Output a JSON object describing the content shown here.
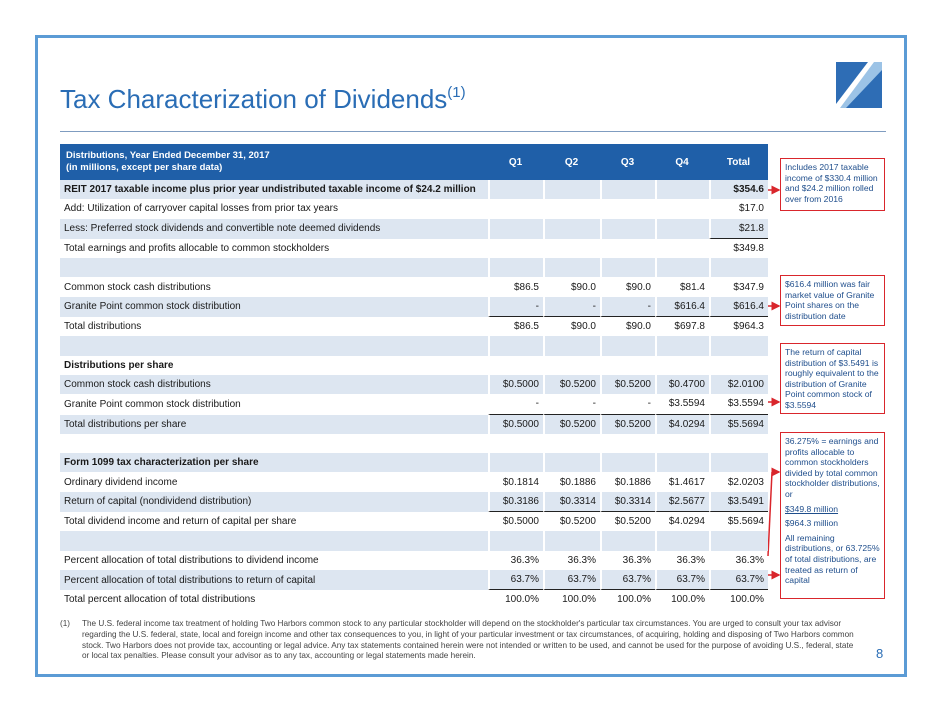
{
  "header": {
    "title": "Tax Characterization of Dividends",
    "title_note": "(1)"
  },
  "table": {
    "header_title": "Distributions, Year Ended December 31, 2017",
    "header_subtitle": "(in millions, except per share data)",
    "columns": [
      "Q1",
      "Q2",
      "Q3",
      "Q4",
      "Total"
    ],
    "rows": [
      [
        "REIT 2017 taxable income plus prior year undistributed taxable income of $24.2 million",
        null,
        null,
        null,
        null,
        "$354.6"
      ],
      [
        "Add: Utilization of carryover capital losses from prior tax years",
        null,
        null,
        null,
        null,
        "$17.0"
      ],
      [
        "Less: Preferred stock dividends and convertible note deemed dividends",
        null,
        null,
        null,
        null,
        "$21.8"
      ],
      [
        "Total earnings and profits allocable to common stockholders",
        null,
        null,
        null,
        null,
        "$349.8"
      ],
      null,
      [
        "Common stock cash distributions",
        "$86.5",
        "$90.0",
        "$90.0",
        "$81.4",
        "$347.9"
      ],
      [
        "Granite Point common stock distribution",
        "-",
        "-",
        "-",
        "$616.4",
        "$616.4"
      ],
      [
        "Total distributions",
        "$86.5",
        "$90.0",
        "$90.0",
        "$697.8",
        "$964.3"
      ],
      null,
      [
        "Distributions per share",
        null,
        null,
        null,
        null,
        null
      ],
      [
        "Common stock cash distributions",
        "$0.5000",
        "$0.5200",
        "$0.5200",
        "$0.4700",
        "$2.0100"
      ],
      [
        "Granite Point common stock distribution",
        "-",
        "-",
        "-",
        "$3.5594",
        "$3.5594"
      ],
      [
        "Total distributions per share",
        "$0.5000",
        "$0.5200",
        "$0.5200",
        "$4.0294",
        "$5.5694"
      ],
      null,
      [
        "Form 1099 tax characterization per share",
        null,
        null,
        null,
        null,
        null
      ],
      [
        "Ordinary dividend income",
        "$0.1814",
        "$0.1886",
        "$0.1886",
        "$1.4617",
        "$2.0203"
      ],
      [
        "Return of capital (nondividend distribution)",
        "$0.3186",
        "$0.3314",
        "$0.3314",
        "$2.5677",
        "$3.5491"
      ],
      [
        "Total dividend income and return of capital per share",
        "$0.5000",
        "$0.5200",
        "$0.5200",
        "$4.0294",
        "$5.5694"
      ],
      null,
      [
        "Percent allocation of total distributions to dividend income",
        "36.3%",
        "36.3%",
        "36.3%",
        "36.3%",
        "36.3%"
      ],
      [
        "Percent allocation of total distributions to return of capital",
        "63.7%",
        "63.7%",
        "63.7%",
        "63.7%",
        "63.7%"
      ],
      [
        "Total percent allocation of total distributions",
        "100.0%",
        "100.0%",
        "100.0%",
        "100.0%",
        "100.0%"
      ]
    ]
  },
  "annotations": [
    {
      "text": "Includes 2017 taxable income of $330.4 million and $24.2 million rolled over from 2016"
    },
    {
      "text": "$616.4 million was fair market value of Granite Point shares on the distribution date"
    },
    {
      "text": "The return of capital distribution of $3.5491 is roughly equivalent to the distribution of Granite Point common stock of $3.5594"
    },
    {
      "text": "36.275% = earnings and profits allocable to common stockholders divided by total common stockholder distributions, or",
      "numerator": "$349.8 million",
      "denominator": "$964.3 million",
      "note": "All remaining distributions, or 63.725% of total distributions, are treated as return of capital"
    }
  ],
  "footnote": {
    "marker": "(1)",
    "text": "The U.S. federal income tax treatment of holding Two Harbors common stock to any particular stockholder will depend on the stockholder's particular tax circumstances. You are urged to consult your tax advisor regarding the U.S. federal, state, local and foreign income and other tax consequences to you, in light of your particular investment or tax circumstances, of acquiring, holding and disposing of Two Harbors common stock. Two Harbors does not provide tax, accounting or legal advice. Any tax statements contained herein were not intended or written to be used, and cannot be used for the purpose of avoiding U.S., federal, state or local tax penalties. Please consult your advisor as to any tax, accounting or legal statements made herein."
  },
  "page_number": "8"
}
